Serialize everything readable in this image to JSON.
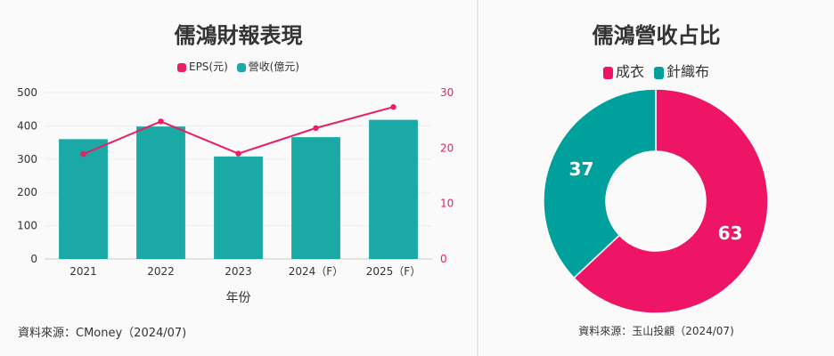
{
  "colors": {
    "teal": "#1aa9a4",
    "magenta": "#e91e63",
    "pie_magenta": "#ee1566",
    "pie_teal": "#00a19c"
  },
  "chart_data": [
    {
      "type": "bar",
      "title": "儒鴻財報表現",
      "categories": [
        "2021",
        "2022",
        "2023",
        "2024（F）",
        "2025（F）"
      ],
      "xlabel": "年份",
      "ylabel": "",
      "ylim": [
        0,
        500
      ],
      "y2lim": [
        0,
        30
      ],
      "yticks": [
        "0",
        "100",
        "200",
        "300",
        "400",
        "500"
      ],
      "y2ticks": [
        "0",
        "10",
        "20",
        "30"
      ],
      "series": [
        {
          "name": "營收(億元)",
          "kind": "bar",
          "axis": "left",
          "color": "#1aa9a4",
          "values": [
            360,
            398,
            308,
            366,
            418
          ]
        },
        {
          "name": "EPS(元)",
          "kind": "line",
          "axis": "right",
          "color": "#e91e63",
          "values": [
            18.9,
            24.8,
            19.0,
            23.6,
            27.4
          ]
        }
      ],
      "grid": true,
      "legend": "top-center",
      "source": "資料來源：CMoney（2024/07)"
    },
    {
      "type": "pie",
      "subtype": "donut",
      "title": "儒鴻營收占比",
      "labels": [
        "成衣",
        "針織布"
      ],
      "values": [
        63,
        37
      ],
      "data_labels": [
        "63",
        "37"
      ],
      "colors": [
        "#ee1566",
        "#00a19c"
      ],
      "legend": "top-center",
      "source": "資料來源：玉山投顧（2024/07)"
    }
  ]
}
